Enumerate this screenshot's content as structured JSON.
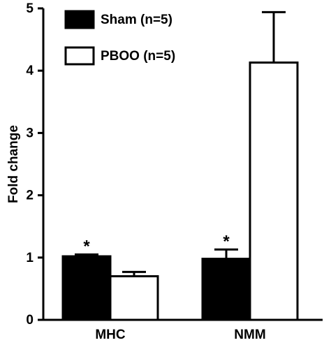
{
  "chart_data": {
    "type": "bar",
    "ylabel": "Fold change",
    "categories": [
      "MHC",
      "NMM"
    ],
    "series": [
      {
        "name": "Sham (n=5)",
        "color": "#000000",
        "values": [
          1.02,
          0.98
        ],
        "errors": [
          0.03,
          0.15
        ]
      },
      {
        "name": "PBOO (n=5)",
        "color": "#ffffff",
        "values": [
          0.7,
          4.13
        ],
        "errors": [
          0.07,
          0.81
        ]
      }
    ],
    "annotations": [
      {
        "text": "*",
        "category": "MHC",
        "series": "Sham (n=5)"
      },
      {
        "text": "*",
        "category": "NMM",
        "series": "Sham (n=5)"
      }
    ],
    "ylim": [
      0,
      5
    ],
    "yticks": [
      0,
      1,
      2,
      3,
      4,
      5
    ],
    "legend": "upper left"
  }
}
